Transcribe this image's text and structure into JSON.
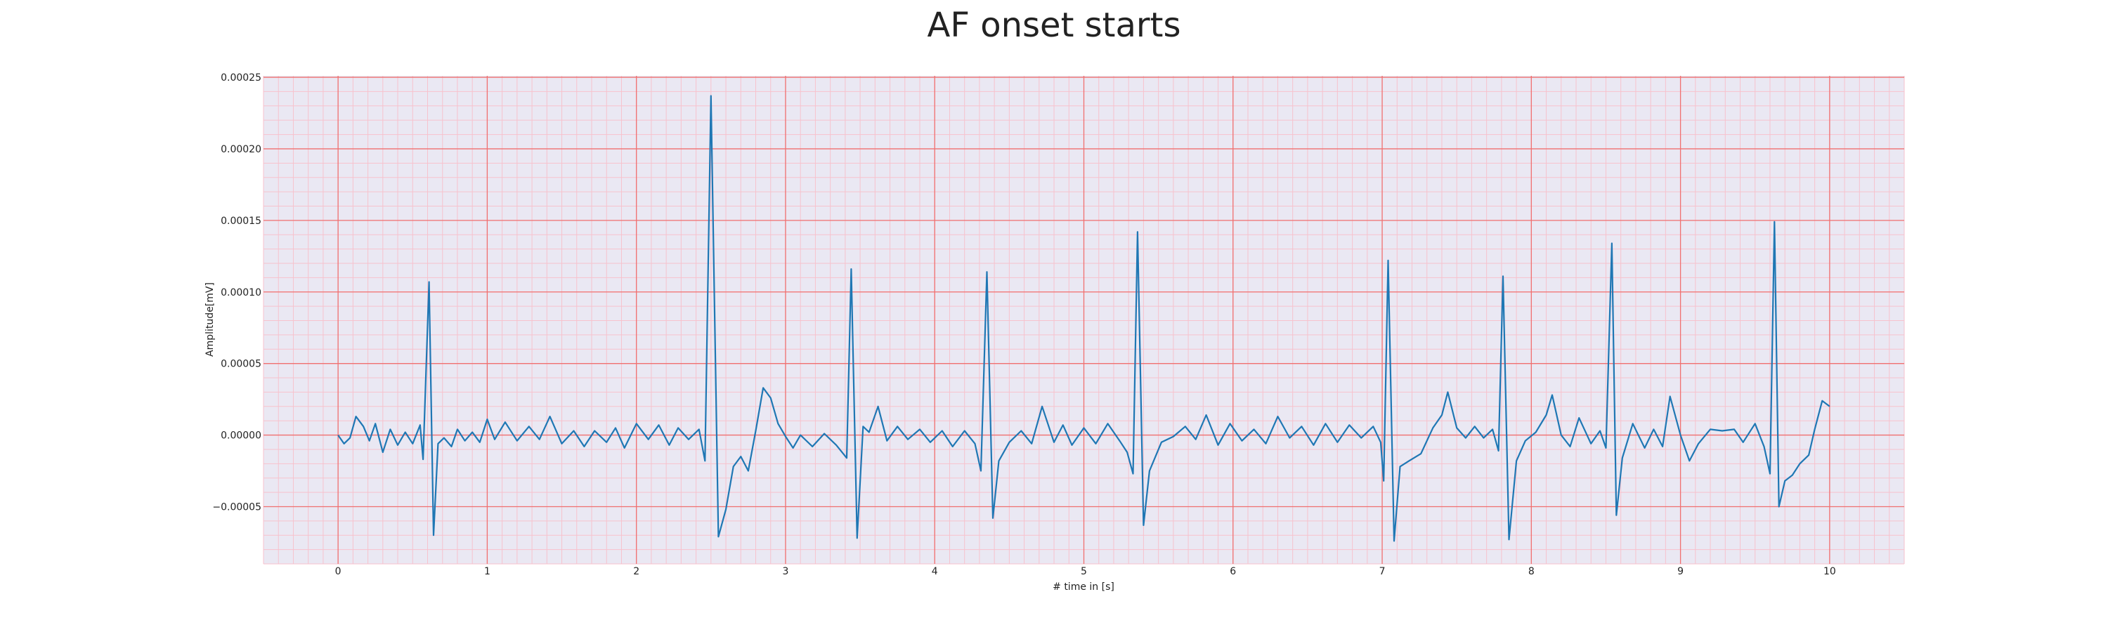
{
  "chart_data": {
    "type": "line",
    "title": "AF onset starts",
    "xlabel": "# time in [s]",
    "ylabel": "Amplitude[mV]",
    "xlim": [
      -0.5,
      10.5
    ],
    "ylim": [
      -9e-05,
      0.000251
    ],
    "xticks": [
      0,
      1,
      2,
      3,
      4,
      5,
      6,
      7,
      8,
      9,
      10
    ],
    "xtick_labels": [
      "0",
      "1",
      "2",
      "3",
      "4",
      "5",
      "6",
      "7",
      "8",
      "9",
      "10"
    ],
    "yticks": [
      -5e-05,
      0,
      5e-05,
      0.0001,
      0.00015,
      0.0002,
      0.00025
    ],
    "ytick_labels": [
      "−0.00005",
      "0.00000",
      "0.00005",
      "0.00010",
      "0.00015",
      "0.00020",
      "0.00025"
    ],
    "grid": true,
    "minor_grid": true,
    "colors": {
      "background": "#eae8f3",
      "major_grid": "#f07070",
      "minor_grid": "#f7c2cd",
      "line": "#1f77b4"
    },
    "series": [
      {
        "values": [
          [
            0.0,
            0.0
          ],
          [
            0.04,
            -6e-06
          ],
          [
            0.08,
            -2e-06
          ],
          [
            0.12,
            1.3e-05
          ],
          [
            0.17,
            6e-06
          ],
          [
            0.21,
            -4e-06
          ],
          [
            0.25,
            8e-06
          ],
          [
            0.3,
            -1.2e-05
          ],
          [
            0.35,
            4e-06
          ],
          [
            0.4,
            -7e-06
          ],
          [
            0.45,
            2e-06
          ],
          [
            0.5,
            -6e-06
          ],
          [
            0.55,
            7e-06
          ],
          [
            0.57,
            -1.7e-05
          ],
          [
            0.61,
            0.000107
          ],
          [
            0.64,
            -7e-05
          ],
          [
            0.67,
            -6e-06
          ],
          [
            0.71,
            -2e-06
          ],
          [
            0.76,
            -8e-06
          ],
          [
            0.8,
            4e-06
          ],
          [
            0.85,
            -4e-06
          ],
          [
            0.9,
            2e-06
          ],
          [
            0.95,
            -5e-06
          ],
          [
            1.0,
            1.1e-05
          ],
          [
            1.05,
            -3e-06
          ],
          [
            1.12,
            9e-06
          ],
          [
            1.2,
            -4e-06
          ],
          [
            1.28,
            6e-06
          ],
          [
            1.35,
            -3e-06
          ],
          [
            1.42,
            1.3e-05
          ],
          [
            1.5,
            -6e-06
          ],
          [
            1.58,
            3e-06
          ],
          [
            1.65,
            -8e-06
          ],
          [
            1.72,
            3e-06
          ],
          [
            1.8,
            -5e-06
          ],
          [
            1.86,
            5e-06
          ],
          [
            1.92,
            -9e-06
          ],
          [
            2.0,
            8e-06
          ],
          [
            2.08,
            -3e-06
          ],
          [
            2.15,
            7e-06
          ],
          [
            2.22,
            -7e-06
          ],
          [
            2.28,
            5e-06
          ],
          [
            2.35,
            -3e-06
          ],
          [
            2.42,
            4e-06
          ],
          [
            2.46,
            -1.8e-05
          ],
          [
            2.5,
            0.000237
          ],
          [
            2.55,
            -7.1e-05
          ],
          [
            2.6,
            -5.2e-05
          ],
          [
            2.65,
            -2.2e-05
          ],
          [
            2.7,
            -1.5e-05
          ],
          [
            2.75,
            -2.5e-05
          ],
          [
            2.8,
            3e-06
          ],
          [
            2.85,
            3.3e-05
          ],
          [
            2.9,
            2.6e-05
          ],
          [
            2.95,
            8e-06
          ],
          [
            3.0,
            -1e-06
          ],
          [
            3.05,
            -9e-06
          ],
          [
            3.1,
            0.0
          ],
          [
            3.18,
            -8e-06
          ],
          [
            3.26,
            1e-06
          ],
          [
            3.34,
            -7e-06
          ],
          [
            3.41,
            -1.6e-05
          ],
          [
            3.44,
            0.000116
          ],
          [
            3.48,
            -7.2e-05
          ],
          [
            3.52,
            6e-06
          ],
          [
            3.56,
            2e-06
          ],
          [
            3.62,
            2e-05
          ],
          [
            3.68,
            -4e-06
          ],
          [
            3.75,
            6e-06
          ],
          [
            3.82,
            -3e-06
          ],
          [
            3.9,
            4e-06
          ],
          [
            3.97,
            -5e-06
          ],
          [
            4.05,
            3e-06
          ],
          [
            4.12,
            -8e-06
          ],
          [
            4.2,
            3e-06
          ],
          [
            4.27,
            -6e-06
          ],
          [
            4.31,
            -2.5e-05
          ],
          [
            4.35,
            0.000114
          ],
          [
            4.39,
            -5.8e-05
          ],
          [
            4.43,
            -1.8e-05
          ],
          [
            4.5,
            -5e-06
          ],
          [
            4.58,
            3e-06
          ],
          [
            4.65,
            -6e-06
          ],
          [
            4.72,
            2e-05
          ],
          [
            4.8,
            -5e-06
          ],
          [
            4.86,
            7e-06
          ],
          [
            4.92,
            -7e-06
          ],
          [
            5.0,
            5e-06
          ],
          [
            5.08,
            -6e-06
          ],
          [
            5.16,
            8e-06
          ],
          [
            5.24,
            -4e-06
          ],
          [
            5.29,
            -1.2e-05
          ],
          [
            5.33,
            -2.7e-05
          ],
          [
            5.36,
            0.000142
          ],
          [
            5.4,
            -6.3e-05
          ],
          [
            5.44,
            -2.5e-05
          ],
          [
            5.52,
            -5e-06
          ],
          [
            5.6,
            -1e-06
          ],
          [
            5.68,
            6e-06
          ],
          [
            5.75,
            -3e-06
          ],
          [
            5.82,
            1.4e-05
          ],
          [
            5.9,
            -7e-06
          ],
          [
            5.98,
            8e-06
          ],
          [
            6.06,
            -4e-06
          ],
          [
            6.14,
            4e-06
          ],
          [
            6.22,
            -6e-06
          ],
          [
            6.3,
            1.3e-05
          ],
          [
            6.38,
            -2e-06
          ],
          [
            6.46,
            6e-06
          ],
          [
            6.54,
            -7e-06
          ],
          [
            6.62,
            8e-06
          ],
          [
            6.7,
            -5e-06
          ],
          [
            6.78,
            7e-06
          ],
          [
            6.86,
            -2e-06
          ],
          [
            6.94,
            6e-06
          ],
          [
            6.99,
            -5e-06
          ],
          [
            7.01,
            -3.2e-05
          ],
          [
            7.04,
            0.000122
          ],
          [
            7.08,
            -7.4e-05
          ],
          [
            7.12,
            -2.2e-05
          ],
          [
            7.18,
            -1.8e-05
          ],
          [
            7.26,
            -1.3e-05
          ],
          [
            7.34,
            5e-06
          ],
          [
            7.4,
            1.4e-05
          ],
          [
            7.44,
            3e-05
          ],
          [
            7.5,
            5e-06
          ],
          [
            7.56,
            -2e-06
          ],
          [
            7.62,
            6e-06
          ],
          [
            7.68,
            -2e-06
          ],
          [
            7.74,
            4e-06
          ],
          [
            7.78,
            -1.1e-05
          ],
          [
            7.81,
            0.000111
          ],
          [
            7.85,
            -7.3e-05
          ],
          [
            7.9,
            -1.8e-05
          ],
          [
            7.96,
            -4e-06
          ],
          [
            8.03,
            2e-06
          ],
          [
            8.1,
            1.4e-05
          ],
          [
            8.14,
            2.8e-05
          ],
          [
            8.2,
            0.0
          ],
          [
            8.26,
            -8e-06
          ],
          [
            8.32,
            1.2e-05
          ],
          [
            8.4,
            -6e-06
          ],
          [
            8.46,
            3e-06
          ],
          [
            8.5,
            -9e-06
          ],
          [
            8.54,
            0.000134
          ],
          [
            8.57,
            -5.6e-05
          ],
          [
            8.61,
            -1.6e-05
          ],
          [
            8.68,
            8e-06
          ],
          [
            8.76,
            -9e-06
          ],
          [
            8.82,
            4e-06
          ],
          [
            8.88,
            -8e-06
          ],
          [
            8.93,
            2.7e-05
          ],
          [
            9.0,
            0.0
          ],
          [
            9.06,
            -1.8e-05
          ],
          [
            9.12,
            -6e-06
          ],
          [
            9.2,
            4e-06
          ],
          [
            9.28,
            3e-06
          ],
          [
            9.36,
            4e-06
          ],
          [
            9.42,
            -5e-06
          ],
          [
            9.5,
            8e-06
          ],
          [
            9.56,
            -8e-06
          ],
          [
            9.6,
            -2.7e-05
          ],
          [
            9.63,
            0.000149
          ],
          [
            9.66,
            -5e-05
          ],
          [
            9.7,
            -3.2e-05
          ],
          [
            9.75,
            -2.8e-05
          ],
          [
            9.8,
            -2e-05
          ],
          [
            9.86,
            -1.4e-05
          ],
          [
            9.9,
            4e-06
          ],
          [
            9.95,
            2.4e-05
          ],
          [
            10.0,
            2e-05
          ]
        ]
      }
    ]
  }
}
